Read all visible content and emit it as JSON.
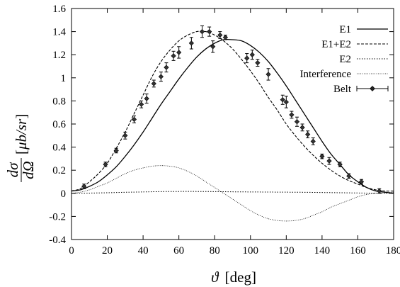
{
  "chart_data": {
    "type": "line",
    "xlabel": {
      "symbol": "ϑ",
      "unit": "[deg]"
    },
    "ylabel": {
      "numerator": "dσ",
      "denominator": "dΩ",
      "unit_prefix": "[",
      "unit": "μb/sr",
      "unit_suffix": "]"
    },
    "xlim": [
      0,
      180
    ],
    "ylim": [
      -0.4,
      1.6
    ],
    "xticks": [
      "0",
      "20",
      "40",
      "60",
      "80",
      "100",
      "120",
      "140",
      "160",
      "180"
    ],
    "yticks": [
      "-0.4",
      "-0.2",
      "0",
      "0.2",
      "0.4",
      "0.6",
      "0.8",
      "1",
      "1.2",
      "1.4",
      "1.6"
    ],
    "grid": false,
    "legend_position": "top-right",
    "series": [
      {
        "name": "E1",
        "style": "solid",
        "color": "#000000",
        "x": [
          0,
          5,
          10,
          15,
          20,
          25,
          30,
          35,
          40,
          45,
          50,
          55,
          60,
          65,
          70,
          75,
          80,
          85,
          90,
          95,
          100,
          105,
          110,
          115,
          120,
          125,
          130,
          135,
          140,
          145,
          150,
          155,
          160,
          165,
          170,
          175,
          180
        ],
        "y": [
          0.02,
          0.03,
          0.06,
          0.1,
          0.16,
          0.23,
          0.32,
          0.42,
          0.53,
          0.65,
          0.77,
          0.88,
          0.99,
          1.09,
          1.18,
          1.25,
          1.3,
          1.33,
          1.33,
          1.32,
          1.28,
          1.22,
          1.14,
          1.04,
          0.93,
          0.81,
          0.69,
          0.57,
          0.45,
          0.34,
          0.25,
          0.16,
          0.1,
          0.05,
          0.02,
          0.01,
          0.0
        ]
      },
      {
        "name": "E1+E2",
        "style": "dashed",
        "color": "#000000",
        "x": [
          0,
          5,
          10,
          15,
          20,
          25,
          30,
          35,
          40,
          45,
          50,
          55,
          60,
          65,
          70,
          75,
          80,
          85,
          90,
          95,
          100,
          105,
          110,
          115,
          120,
          125,
          130,
          135,
          140,
          145,
          150,
          155,
          160,
          165,
          170,
          175,
          180
        ],
        "y": [
          0.02,
          0.04,
          0.1,
          0.17,
          0.26,
          0.39,
          0.53,
          0.69,
          0.85,
          1.01,
          1.14,
          1.24,
          1.32,
          1.37,
          1.4,
          1.4,
          1.37,
          1.32,
          1.25,
          1.16,
          1.06,
          0.95,
          0.83,
          0.72,
          0.6,
          0.5,
          0.41,
          0.33,
          0.26,
          0.2,
          0.15,
          0.11,
          0.08,
          0.05,
          0.03,
          0.02,
          0.02
        ]
      },
      {
        "name": "E2",
        "style": "dotted",
        "color": "#000000",
        "x": [
          0,
          10,
          20,
          30,
          40,
          50,
          60,
          70,
          80,
          90,
          100,
          110,
          120,
          130,
          140,
          150,
          160,
          170,
          180
        ],
        "y": [
          0.0,
          0.002,
          0.005,
          0.009,
          0.012,
          0.015,
          0.016,
          0.016,
          0.015,
          0.013,
          0.012,
          0.011,
          0.01,
          0.009,
          0.007,
          0.005,
          0.003,
          0.001,
          0.0
        ]
      },
      {
        "name": "Interference",
        "style": "fine-dotted",
        "color": "#000000",
        "x": [
          0,
          5,
          10,
          15,
          20,
          25,
          30,
          35,
          40,
          45,
          50,
          55,
          60,
          65,
          70,
          75,
          80,
          85,
          90,
          95,
          100,
          105,
          110,
          115,
          120,
          125,
          130,
          135,
          140,
          145,
          150,
          155,
          160,
          165,
          170,
          175,
          180
        ],
        "y": [
          0.0,
          0.01,
          0.03,
          0.06,
          0.09,
          0.13,
          0.17,
          0.2,
          0.22,
          0.235,
          0.24,
          0.235,
          0.22,
          0.19,
          0.15,
          0.1,
          0.05,
          0.0,
          -0.05,
          -0.1,
          -0.15,
          -0.19,
          -0.22,
          -0.235,
          -0.24,
          -0.235,
          -0.22,
          -0.19,
          -0.16,
          -0.12,
          -0.09,
          -0.06,
          -0.03,
          -0.01,
          0.0,
          0.005,
          0.01
        ]
      },
      {
        "name": "Belt",
        "style": "points-errorbars",
        "color": "#000000",
        "x": [
          7,
          19,
          25,
          30,
          35,
          39,
          42,
          46,
          50,
          53,
          57,
          60,
          67,
          73,
          77,
          79,
          83,
          86,
          98,
          101,
          104,
          110,
          118,
          120,
          123,
          126,
          129,
          132,
          135,
          140,
          144,
          150,
          155,
          162,
          172
        ],
        "y": [
          0.06,
          0.25,
          0.37,
          0.5,
          0.64,
          0.77,
          0.82,
          0.95,
          1.01,
          1.09,
          1.19,
          1.22,
          1.3,
          1.4,
          1.4,
          1.27,
          1.37,
          1.35,
          1.17,
          1.2,
          1.13,
          1.03,
          0.81,
          0.79,
          0.68,
          0.62,
          0.57,
          0.51,
          0.45,
          0.32,
          0.28,
          0.25,
          0.15,
          0.1,
          0.02
        ],
        "err": [
          0.02,
          0.02,
          0.02,
          0.03,
          0.03,
          0.03,
          0.04,
          0.03,
          0.04,
          0.04,
          0.04,
          0.05,
          0.05,
          0.05,
          0.04,
          0.05,
          0.03,
          0.02,
          0.04,
          0.04,
          0.03,
          0.05,
          0.04,
          0.05,
          0.03,
          0.04,
          0.03,
          0.03,
          0.03,
          0.02,
          0.03,
          0.02,
          0.02,
          0.02,
          0.02
        ]
      }
    ]
  }
}
